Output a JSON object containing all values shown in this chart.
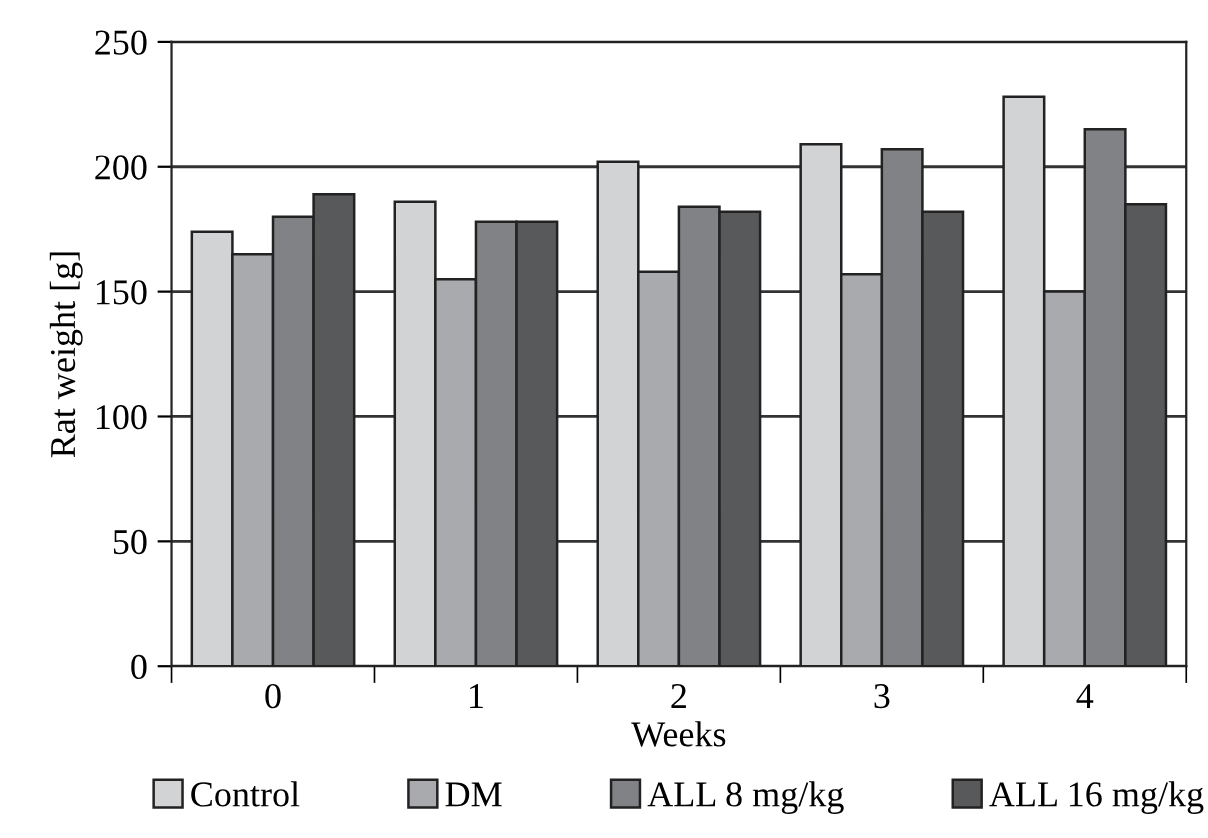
{
  "chart_data": {
    "type": "bar",
    "xlabel": "Weeks",
    "ylabel": "Rat weight [g]",
    "categories": [
      "0",
      "1",
      "2",
      "3",
      "4"
    ],
    "series": [
      {
        "name": "Control",
        "color": "#d2d3d5",
        "values": [
          174,
          186,
          202,
          209,
          228
        ]
      },
      {
        "name": "DM",
        "color": "#a9aaad",
        "values": [
          165,
          155,
          158,
          157,
          150
        ]
      },
      {
        "name": "ALL 8 mg/kg",
        "color": "#818286",
        "values": [
          180,
          178,
          184,
          207,
          215
        ]
      },
      {
        "name": "ALL 16 mg/kg",
        "color": "#58595b",
        "values": [
          189,
          178,
          182,
          182,
          185
        ]
      }
    ],
    "ylim": [
      0,
      250
    ],
    "yticks": [
      0,
      50,
      100,
      150,
      200,
      250
    ],
    "grid": "y",
    "legend": "bottom"
  }
}
